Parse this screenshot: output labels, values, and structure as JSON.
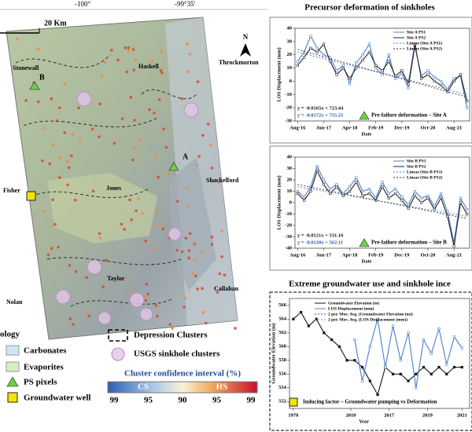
{
  "map": {
    "lon_labels": [
      "-100°",
      "-99°35'"
    ],
    "scale_label": "20 Km",
    "north": "N",
    "places": [
      "Stonewall",
      "Haskell",
      "Throckmorton",
      "Fisher",
      "Jones",
      "Shackelford",
      "Nolan",
      "Taylor",
      "Callahan"
    ],
    "sites": [
      "A",
      "B"
    ]
  },
  "legend": {
    "heading": "ology",
    "items": [
      "Carbonates",
      "Evaporites",
      "PS pixels",
      "Groundwater well",
      "Depression Clusters",
      "USGS sinkhole clusters"
    ],
    "colorbar_title": "Cluster confidence interval (%)",
    "colorbar_ends": [
      "CS",
      "HS"
    ],
    "colorbar_ticks": [
      99,
      95,
      90,
      95,
      99
    ]
  },
  "charts": [
    {
      "type": "line",
      "title": "Precursor deformation of sinkholes",
      "y_label": "LOS Displacement (mm)",
      "x_label": "Date",
      "xlim": [
        -0.1,
        6.6
      ],
      "xticks": [
        {
          "value": 0,
          "label": "Aug-16"
        },
        {
          "value": 1,
          "label": "Jun-17"
        },
        {
          "value": 2,
          "label": "Apr-18"
        },
        {
          "value": 3,
          "label": "Feb-19"
        },
        {
          "value": 4,
          "label": "Dec-19"
        },
        {
          "value": 5,
          "label": "Oct-20"
        },
        {
          "value": 6,
          "label": "Aug-21"
        }
      ],
      "ylim": [
        -30,
        40
      ],
      "yticks": [
        40,
        30,
        20,
        10,
        0,
        -10,
        -20,
        -30
      ],
      "series": [
        {
          "name": "Site A PS1",
          "color": "#4a7fc8",
          "dash": false,
          "x": [
            0,
            0.25,
            0.5,
            0.75,
            1,
            1.25,
            1.5,
            1.75,
            2,
            2.25,
            2.5,
            2.75,
            3,
            3.25,
            3.5,
            3.75,
            4,
            4.25,
            4.5,
            4.75,
            5,
            5.25,
            5.5,
            5.75,
            6,
            6.25,
            6.5
          ],
          "values": [
            15,
            22,
            34,
            25,
            20,
            18,
            8,
            12,
            -2,
            14,
            20,
            28,
            10,
            5,
            20,
            2,
            6,
            -5,
            26,
            4,
            8,
            3,
            0,
            -6,
            2,
            4,
            -20
          ]
        },
        {
          "name": "Site A PS2",
          "color": "#222222",
          "dash": false,
          "x": [
            0,
            0.25,
            0.5,
            0.75,
            1,
            1.25,
            1.5,
            1.75,
            2,
            2.25,
            2.5,
            2.75,
            3,
            3.25,
            3.5,
            3.75,
            4,
            4.25,
            4.5,
            4.75,
            5,
            5.25,
            5.5,
            5.75,
            6,
            6.25,
            6.5
          ],
          "values": [
            12,
            18,
            25,
            22,
            28,
            15,
            5,
            10,
            2,
            10,
            16,
            22,
            12,
            8,
            15,
            4,
            8,
            -2,
            28,
            2,
            5,
            0,
            -3,
            -8,
            0,
            5,
            -15
          ]
        },
        {
          "name": "Linear (Site A PS1)",
          "color": "#4a7fc8",
          "dash": true,
          "x": [
            0,
            6.5
          ],
          "values": [
            22,
            -10
          ]
        },
        {
          "name": "Linear (Site A PS2)",
          "color": "#333333",
          "dash": true,
          "x": [
            0,
            6.5
          ],
          "values": [
            24,
            -12
          ]
        }
      ],
      "equations": [
        "y = -0.0165x + 723.44",
        "y = -0.0172x + 755.25"
      ],
      "note": "Pre-failure deformation – Site A"
    },
    {
      "type": "line",
      "y_label": "LOS Displacement (mm)",
      "x_label": "Date",
      "xlim": [
        -0.1,
        6.6
      ],
      "xticks": [
        {
          "value": 0,
          "label": "Aug-16"
        },
        {
          "value": 1,
          "label": "Jun-17"
        },
        {
          "value": 2,
          "label": "Apr-18"
        },
        {
          "value": 3,
          "label": "Feb-19"
        },
        {
          "value": 4,
          "label": "Dec-19"
        },
        {
          "value": 5,
          "label": "Oct-20"
        },
        {
          "value": 6,
          "label": "Aug-21"
        }
      ],
      "ylim": [
        -40,
        40
      ],
      "yticks": [
        40,
        30,
        20,
        10,
        0,
        -10,
        -20,
        -30,
        -40
      ],
      "series": [
        {
          "name": "Site B PS1",
          "color": "#4a7fc8",
          "dash": false,
          "x": [
            0,
            0.25,
            0.5,
            0.75,
            1,
            1.25,
            1.5,
            1.75,
            2,
            2.25,
            2.5,
            2.75,
            3,
            3.25,
            3.5,
            3.75,
            4,
            4.25,
            4.5,
            4.75,
            5,
            5.25,
            5.5,
            5.75,
            6,
            6.25,
            6.5
          ],
          "values": [
            10,
            5,
            14,
            32,
            20,
            12,
            16,
            8,
            14,
            22,
            10,
            12,
            4,
            18,
            8,
            12,
            5,
            -2,
            10,
            4,
            6,
            -3,
            8,
            -8,
            -35,
            4,
            -6
          ]
        },
        {
          "name": "Site B PS2",
          "color": "#222222",
          "dash": false,
          "x": [
            0,
            0.25,
            0.5,
            0.75,
            1,
            1.25,
            1.5,
            1.75,
            2,
            2.25,
            2.5,
            2.75,
            3,
            3.25,
            3.5,
            3.75,
            4,
            4.25,
            4.5,
            4.75,
            5,
            5.25,
            5.5,
            5.75,
            6,
            6.25,
            6.5
          ],
          "values": [
            8,
            2,
            10,
            28,
            16,
            8,
            14,
            6,
            10,
            18,
            6,
            8,
            2,
            14,
            4,
            8,
            2,
            -5,
            6,
            0,
            4,
            -6,
            4,
            -12,
            -38,
            0,
            -10
          ]
        },
        {
          "name": "Linear (Site B PS1)",
          "color": "#4a7fc8",
          "dash": true,
          "x": [
            0,
            6.5
          ],
          "values": [
            14,
            -12
          ]
        },
        {
          "name": "Linear (Site B PS2)",
          "color": "#333333",
          "dash": true,
          "x": [
            0,
            6.5
          ],
          "values": [
            16,
            -14
          ]
        }
      ],
      "equations": [
        "y = -0.0121x + 531.16",
        "y = -0.0128x + 562.11"
      ],
      "note": "Pre-failure deformation – Site B"
    },
    {
      "type": "line",
      "title": "Extreme groundwater use and sinkhole ince",
      "y_label": "Groundwater Elevation (m)",
      "x_label": "Year",
      "xlim": [
        -0.1,
        4.6
      ],
      "xticks": [
        {
          "value": 0,
          "label": "1970"
        },
        {
          "value": 1.5,
          "label": "2010"
        },
        {
          "value": 2.5,
          "label": "2017"
        },
        {
          "value": 3.5,
          "label": "2019"
        },
        {
          "value": 4.4,
          "label": "2021"
        }
      ],
      "ylim": [
        551,
        567
      ],
      "yticks": [
        566,
        564,
        562,
        560,
        558,
        556,
        554,
        552
      ],
      "y2lim": [
        -40,
        40
      ],
      "series": [
        {
          "name": "Groundwater Elevation (m)",
          "color": "#111111",
          "dash": false,
          "x": [
            0,
            0.2,
            0.4,
            0.6,
            0.8,
            1,
            1.2,
            1.4,
            1.6,
            1.8,
            2,
            2.2,
            2.4,
            2.6,
            2.8,
            3,
            3.2,
            3.4,
            3.6,
            3.8,
            4,
            4.2,
            4.4
          ],
          "values": [
            564,
            565,
            563,
            564,
            562,
            561,
            560,
            558,
            558,
            557,
            555,
            553,
            557,
            556,
            556,
            555,
            556,
            557,
            556,
            557,
            556,
            557,
            557
          ]
        },
        {
          "name": "LOS Displacement (mm)",
          "color": "#4a7fc8",
          "dash": false,
          "axis": "y2",
          "x": [
            1.6,
            1.8,
            2,
            2.2,
            2.4,
            2.6,
            2.8,
            3,
            3.2,
            3.4,
            3.6,
            3.8,
            4,
            4.2,
            4.4
          ],
          "values": [
            10,
            -20,
            5,
            25,
            -10,
            20,
            -5,
            15,
            -25,
            10,
            0,
            18,
            -8,
            12,
            4
          ]
        },
        {
          "name": "2 per. Mov. Avg. (Groundwater Elevation (m))",
          "color": "#555555",
          "dash": true
        },
        {
          "name": "2 per. Mov. Avg. (LOS Displacement (mm))",
          "color": "#d08a8a",
          "dash": true
        }
      ],
      "note": "Inducing factor – Groundwater pumping vs Deformation"
    }
  ]
}
